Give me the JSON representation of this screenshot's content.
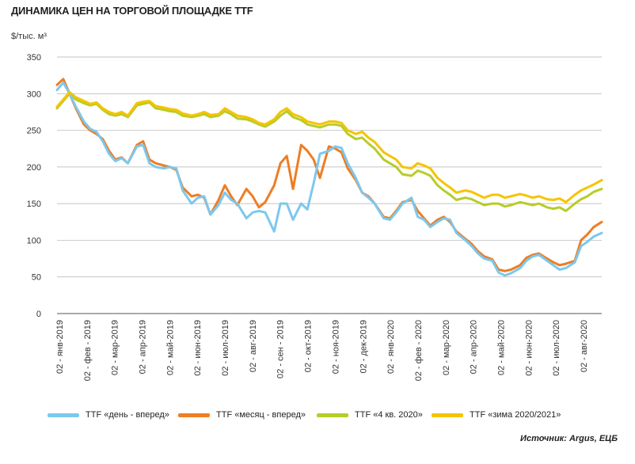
{
  "title": "ДИНАМИКА ЦЕН НА ТОРГОВОЙ ПЛОЩАДКЕ TTF",
  "unit": "$/тыс. м³",
  "source": "Источник: Argus, ЕЦБ",
  "colors": {
    "day_ahead": "#7cc8ee",
    "month_ahead": "#ef7d22",
    "q4_2020": "#b7cc2a",
    "winter": "#f5c400",
    "grid": "#b0b0b0"
  },
  "chart_data": {
    "type": "line",
    "title": "ДИНАМИКА ЦЕН НА ТОРГОВОЙ ПЛОЩАДКЕ TTF",
    "ylabel": "$/тыс. м³",
    "ylim": [
      0,
      350
    ],
    "yticks": [
      0,
      50,
      100,
      150,
      200,
      250,
      300,
      350
    ],
    "grid": true,
    "legend_position": "bottom",
    "x_tick_labels": [
      "02 - янв-2019",
      "02 - фев - 2019",
      "02 - мар-2019",
      "02 - апр-2019",
      "02 - май-2019",
      "02 - июн-2019",
      "02 - июл-2019",
      "02 - авг-2019",
      "02 - сен - 2019",
      "02 - окт-2019",
      "02 - ноя-2019",
      "02 - дек-2019",
      "02 - янв-2020",
      "02 - фев - 2020",
      "02 - мар-2020",
      "02 - апр-2020",
      "02 - май-2020",
      "02 - июн-2020",
      "02 - июл-2020",
      "02 - авг-2020"
    ],
    "x": [
      "2019-01-02",
      "2019-01-09",
      "2019-01-16",
      "2019-01-23",
      "2019-02-01",
      "2019-02-08",
      "2019-02-15",
      "2019-02-22",
      "2019-03-01",
      "2019-03-08",
      "2019-03-15",
      "2019-03-22",
      "2019-04-01",
      "2019-04-08",
      "2019-04-15",
      "2019-04-22",
      "2019-05-01",
      "2019-05-08",
      "2019-05-15",
      "2019-05-22",
      "2019-06-01",
      "2019-06-08",
      "2019-06-15",
      "2019-06-22",
      "2019-07-01",
      "2019-07-08",
      "2019-07-15",
      "2019-07-22",
      "2019-08-01",
      "2019-08-08",
      "2019-08-15",
      "2019-08-22",
      "2019-09-01",
      "2019-09-08",
      "2019-09-15",
      "2019-09-22",
      "2019-10-01",
      "2019-10-08",
      "2019-10-15",
      "2019-10-22",
      "2019-11-01",
      "2019-11-08",
      "2019-11-15",
      "2019-11-22",
      "2019-12-01",
      "2019-12-08",
      "2019-12-15",
      "2019-12-22",
      "2020-01-01",
      "2020-01-08",
      "2020-01-15",
      "2020-01-22",
      "2020-02-01",
      "2020-02-08",
      "2020-02-15",
      "2020-02-22",
      "2020-03-01",
      "2020-03-08",
      "2020-03-15",
      "2020-03-22",
      "2020-04-01",
      "2020-04-08",
      "2020-04-15",
      "2020-04-22",
      "2020-05-01",
      "2020-05-08",
      "2020-05-15",
      "2020-05-22",
      "2020-06-01",
      "2020-06-08",
      "2020-06-15",
      "2020-06-22",
      "2020-07-01",
      "2020-07-08",
      "2020-07-15",
      "2020-07-22",
      "2020-08-01",
      "2020-08-08",
      "2020-08-15",
      "2020-08-22",
      "2020-08-31"
    ],
    "series": [
      {
        "name": "TTF «день - вперед»",
        "color": "#7cc8ee",
        "values": [
          305,
          315,
          300,
          282,
          262,
          252,
          248,
          235,
          218,
          208,
          212,
          205,
          228,
          230,
          205,
          200,
          198,
          200,
          198,
          168,
          150,
          158,
          160,
          135,
          148,
          165,
          155,
          150,
          130,
          138,
          140,
          138,
          112,
          150,
          150,
          128,
          150,
          142,
          178,
          218,
          222,
          228,
          226,
          205,
          185,
          165,
          158,
          150,
          130,
          128,
          138,
          150,
          158,
          132,
          128,
          118,
          125,
          130,
          128,
          110,
          100,
          92,
          82,
          75,
          72,
          56,
          52,
          55,
          62,
          72,
          78,
          80,
          72,
          66,
          60,
          62,
          70,
          92,
          98,
          105,
          110
        ]
      },
      {
        "name": "TTF «месяц - вперед»",
        "color": "#ef7d22",
        "values": [
          312,
          320,
          300,
          280,
          258,
          250,
          245,
          238,
          222,
          210,
          213,
          205,
          230,
          235,
          210,
          205,
          202,
          200,
          196,
          172,
          160,
          162,
          158,
          135,
          155,
          175,
          160,
          148,
          170,
          160,
          145,
          152,
          175,
          205,
          215,
          170,
          230,
          222,
          210,
          185,
          228,
          225,
          220,
          198,
          182,
          165,
          160,
          150,
          132,
          130,
          140,
          152,
          155,
          140,
          130,
          120,
          128,
          132,
          125,
          112,
          102,
          95,
          85,
          78,
          74,
          60,
          58,
          60,
          66,
          76,
          80,
          82,
          75,
          70,
          66,
          68,
          72,
          100,
          108,
          118,
          125
        ]
      },
      {
        "name": "TTF «4 кв. 2020»",
        "color": "#b7cc2a",
        "values": [
          280,
          290,
          300,
          292,
          287,
          284,
          286,
          278,
          272,
          270,
          272,
          268,
          284,
          286,
          288,
          280,
          278,
          276,
          275,
          270,
          268,
          270,
          272,
          268,
          270,
          276,
          272,
          266,
          265,
          262,
          258,
          255,
          262,
          270,
          276,
          268,
          264,
          258,
          256,
          254,
          258,
          258,
          256,
          245,
          238,
          240,
          232,
          225,
          210,
          205,
          200,
          190,
          188,
          195,
          192,
          188,
          175,
          168,
          162,
          155,
          158,
          156,
          152,
          148,
          150,
          150,
          146,
          148,
          152,
          150,
          148,
          150,
          145,
          143,
          145,
          140,
          150,
          156,
          160,
          166,
          170
        ]
      },
      {
        "name": "TTF «зима 2020/2021»",
        "color": "#f5c400",
        "values": [
          282,
          292,
          302,
          295,
          290,
          286,
          288,
          280,
          275,
          272,
          275,
          270,
          287,
          289,
          290,
          283,
          281,
          279,
          278,
          273,
          270,
          272,
          275,
          271,
          272,
          280,
          275,
          270,
          268,
          265,
          260,
          258,
          265,
          275,
          280,
          272,
          268,
          262,
          260,
          258,
          262,
          262,
          260,
          250,
          245,
          248,
          240,
          234,
          220,
          215,
          210,
          200,
          198,
          205,
          202,
          198,
          185,
          178,
          172,
          165,
          168,
          166,
          162,
          158,
          162,
          162,
          158,
          160,
          163,
          161,
          158,
          160,
          156,
          155,
          157,
          152,
          162,
          168,
          172,
          176,
          182
        ]
      }
    ]
  },
  "legend": {
    "items": [
      {
        "label": "TTF «день - вперед»",
        "color": "#7cc8ee"
      },
      {
        "label": "TTF «месяц - вперед»",
        "color": "#ef7d22"
      },
      {
        "label": "TTF «4 кв. 2020»",
        "color": "#b7cc2a"
      },
      {
        "label": "TTF «зима 2020/2021»",
        "color": "#f5c400"
      }
    ]
  }
}
